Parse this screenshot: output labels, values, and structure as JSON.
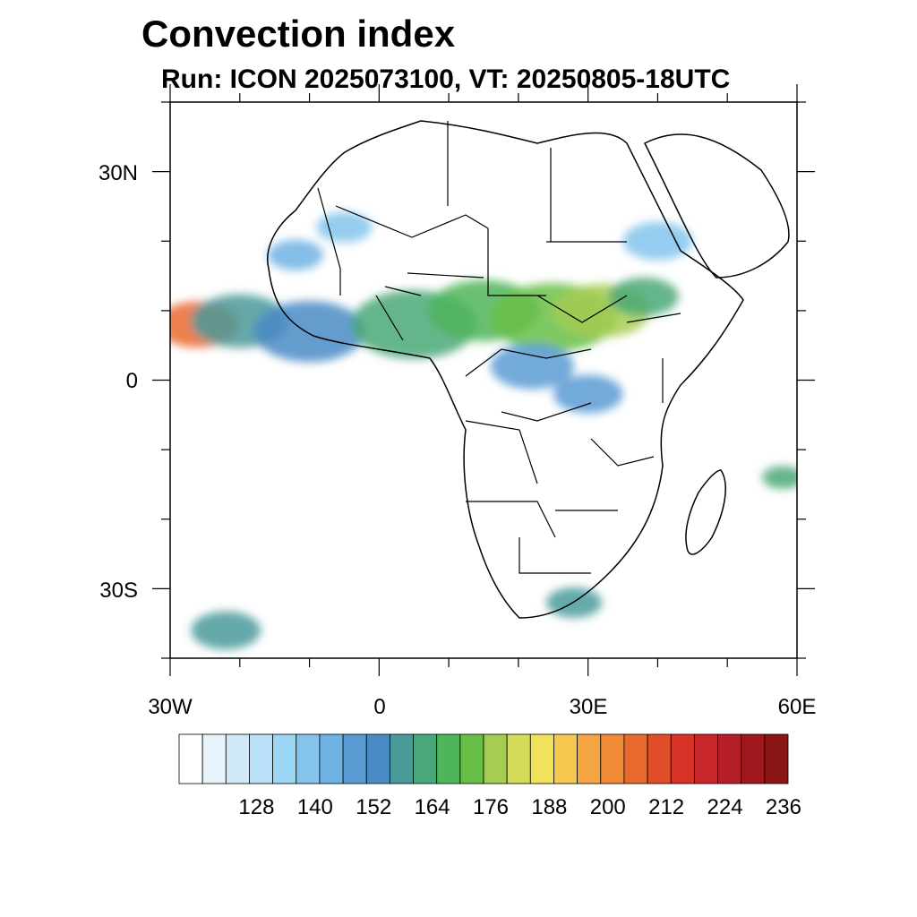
{
  "title": "Convection index",
  "subtitle": "Run: ICON 2025073100,  VT: 20250805-18UTC",
  "map": {
    "lon_range": [
      -30,
      60
    ],
    "lat_range": [
      -40,
      40
    ],
    "x_ticks": [
      "30W",
      "0",
      "30E",
      "60E"
    ],
    "y_ticks": [
      "30N",
      "0",
      "30S"
    ]
  },
  "colorbar": {
    "labels": [
      "128",
      "140",
      "152",
      "164",
      "176",
      "188",
      "200",
      "212",
      "224",
      "236"
    ],
    "colors": [
      "#ffffff",
      "#e8f4fb",
      "#cfe9f7",
      "#b8e0f7",
      "#9cd6f5",
      "#83c3ec",
      "#6eb1e3",
      "#5a9bd4",
      "#4a8bc6",
      "#4a9a9a",
      "#4aa878",
      "#4fb55a",
      "#68bf48",
      "#a5cd52",
      "#d3dc58",
      "#f0e35a",
      "#f7c84f",
      "#f5a642",
      "#f08a37",
      "#ea6a2d",
      "#e04e27",
      "#d83227",
      "#c7262a",
      "#b41e27",
      "#a0181f",
      "#8a1616"
    ]
  },
  "convection_cells": [
    {
      "lon": -26,
      "lat": 8,
      "r": 6,
      "level": 19
    },
    {
      "lon": -20,
      "lat": 8.5,
      "r": 7,
      "level": 9
    },
    {
      "lon": -10,
      "lat": 7,
      "r": 8,
      "level": 8
    },
    {
      "lon": 5,
      "lat": 8,
      "r": 9,
      "level": 10
    },
    {
      "lon": 15,
      "lat": 10,
      "r": 8,
      "level": 11
    },
    {
      "lon": 25,
      "lat": 9,
      "r": 9,
      "level": 12
    },
    {
      "lon": 32,
      "lat": 10,
      "r": 7,
      "level": 13
    },
    {
      "lon": 38,
      "lat": 12,
      "r": 5,
      "level": 10
    },
    {
      "lon": 30,
      "lat": -2,
      "r": 5,
      "level": 7
    },
    {
      "lon": 22,
      "lat": 2,
      "r": 6,
      "level": 7
    },
    {
      "lon": -12,
      "lat": 18,
      "r": 4,
      "level": 6
    },
    {
      "lon": -5,
      "lat": 22,
      "r": 4,
      "level": 5
    },
    {
      "lon": 40,
      "lat": 20,
      "r": 5,
      "level": 5
    },
    {
      "lon": 28,
      "lat": -32,
      "r": 4,
      "level": 9
    },
    {
      "lon": -22,
      "lat": -36,
      "r": 5,
      "level": 9
    },
    {
      "lon": 58,
      "lat": -14,
      "r": 3,
      "level": 10
    }
  ]
}
